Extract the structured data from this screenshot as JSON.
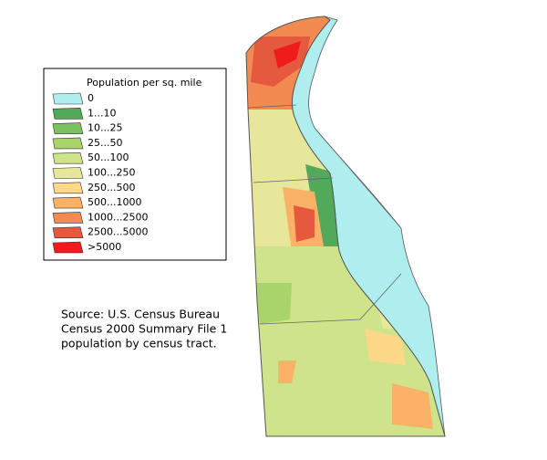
{
  "legend": {
    "title": "Population per sq. mile",
    "items": [
      {
        "label": "0",
        "color": "#aeeeee"
      },
      {
        "label": "1...10",
        "color": "#52a95a"
      },
      {
        "label": "10...25",
        "color": "#7cc160"
      },
      {
        "label": "25...50",
        "color": "#a9d46c"
      },
      {
        "label": "50...100",
        "color": "#cfe38a"
      },
      {
        "label": "100...250",
        "color": "#e6e79a"
      },
      {
        "label": "250...500",
        "color": "#fcd888"
      },
      {
        "label": "500...1000",
        "color": "#fbb266"
      },
      {
        "label": "1000...2500",
        "color": "#f28a52"
      },
      {
        "label": "2500...5000",
        "color": "#e5593f"
      },
      {
        "label": ">5000",
        "color": "#ee1c1c"
      }
    ]
  },
  "source": {
    "lines": [
      "Source: U.S. Census Bureau",
      "Census 2000 Summary File 1",
      "population by census tract."
    ]
  }
}
